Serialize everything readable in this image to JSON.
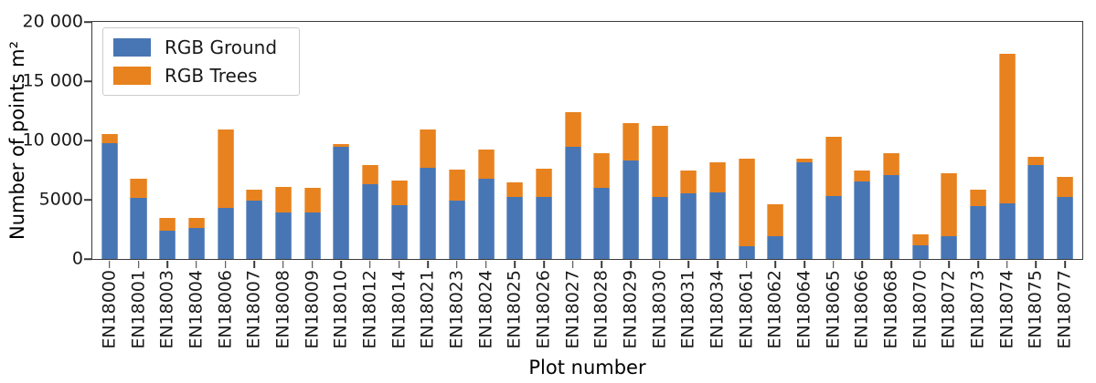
{
  "chart_data": {
    "type": "bar",
    "stacked": true,
    "title": "",
    "xlabel": "Plot number",
    "ylabel": "Number of points m²",
    "ylim": [
      0,
      20000
    ],
    "grid": false,
    "legend_position": "upper left",
    "yticks": [
      {
        "value": 0,
        "label": "0"
      },
      {
        "value": 5000,
        "label": "5000"
      },
      {
        "value": 10000,
        "label": "10 000"
      },
      {
        "value": 15000,
        "label": "15 000"
      },
      {
        "value": 20000,
        "label": "20 000"
      }
    ],
    "categories": [
      "EN18000",
      "EN18001",
      "EN18003",
      "EN18004",
      "EN18006",
      "EN18007",
      "EN18008",
      "EN18009",
      "EN18010",
      "EN18012",
      "EN18014",
      "EN18021",
      "EN18023",
      "EN18024",
      "EN18025",
      "EN18026",
      "EN18027",
      "EN18028",
      "EN18029",
      "EN18030",
      "EN18031",
      "EN18034",
      "EN18061",
      "EN18062",
      "EN18064",
      "EN18065",
      "EN18066",
      "EN18068",
      "EN18070",
      "EN18072",
      "EN18073",
      "EN18074",
      "EN18075",
      "EN18077"
    ],
    "series": [
      {
        "name": "RGB Ground",
        "color": "#4876b4",
        "values": [
          9750,
          5150,
          2350,
          2600,
          4300,
          4900,
          3950,
          3900,
          9450,
          6300,
          4550,
          7700,
          4950,
          6770,
          5200,
          5250,
          9500,
          6030,
          8330,
          5200,
          5550,
          5650,
          1050,
          1950,
          8130,
          5300,
          6550,
          7100,
          1150,
          1900,
          4450,
          4700,
          7950,
          5200
        ]
      },
      {
        "name": "RGB Trees",
        "color": "#e8821e",
        "values": [
          800,
          1640,
          1110,
          850,
          6600,
          950,
          2100,
          2070,
          240,
          1590,
          2030,
          3250,
          2560,
          2460,
          1280,
          2370,
          2900,
          2890,
          3170,
          6000,
          1940,
          2500,
          7400,
          2700,
          310,
          5000,
          880,
          1800,
          950,
          5300,
          1400,
          12600,
          700,
          1700
        ]
      }
    ]
  }
}
